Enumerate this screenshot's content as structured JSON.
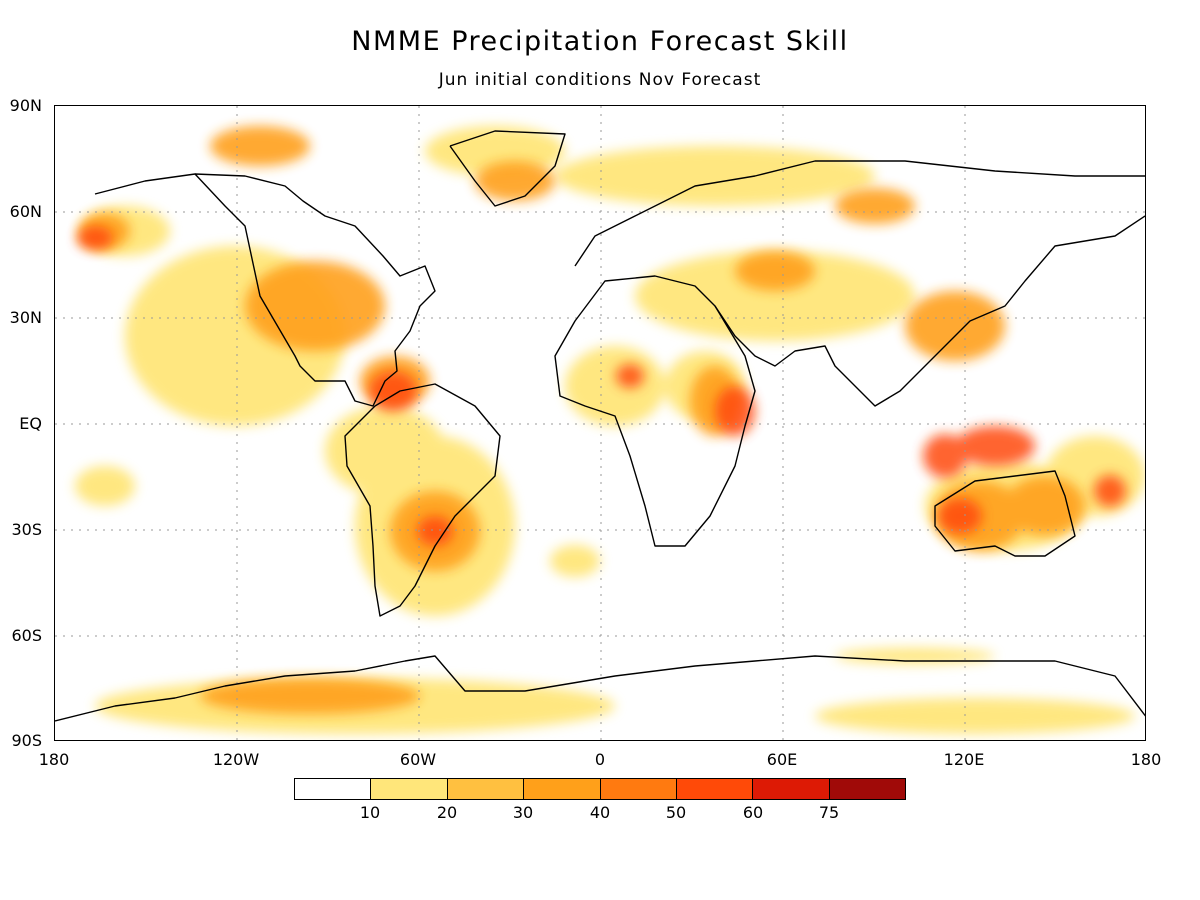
{
  "title": "NMME Precipitation Forecast Skill",
  "subtitle": "Jun initial conditions  Nov Forecast",
  "y_axis_labels": [
    "90N",
    "60N",
    "30N",
    "EQ",
    "30S",
    "60S",
    "90S"
  ],
  "x_axis_labels": [
    "180",
    "120W",
    "60W",
    "0",
    "60E",
    "120E",
    "180"
  ],
  "colorbar": {
    "colors": [
      "#ffffff",
      "#ffe67a",
      "#ffc040",
      "#ffa01a",
      "#ff7a10",
      "#ff4a08",
      "#dd1a05",
      "#a00a08"
    ],
    "tick_labels": [
      "10",
      "20",
      "30",
      "40",
      "50",
      "60",
      "75"
    ]
  }
}
